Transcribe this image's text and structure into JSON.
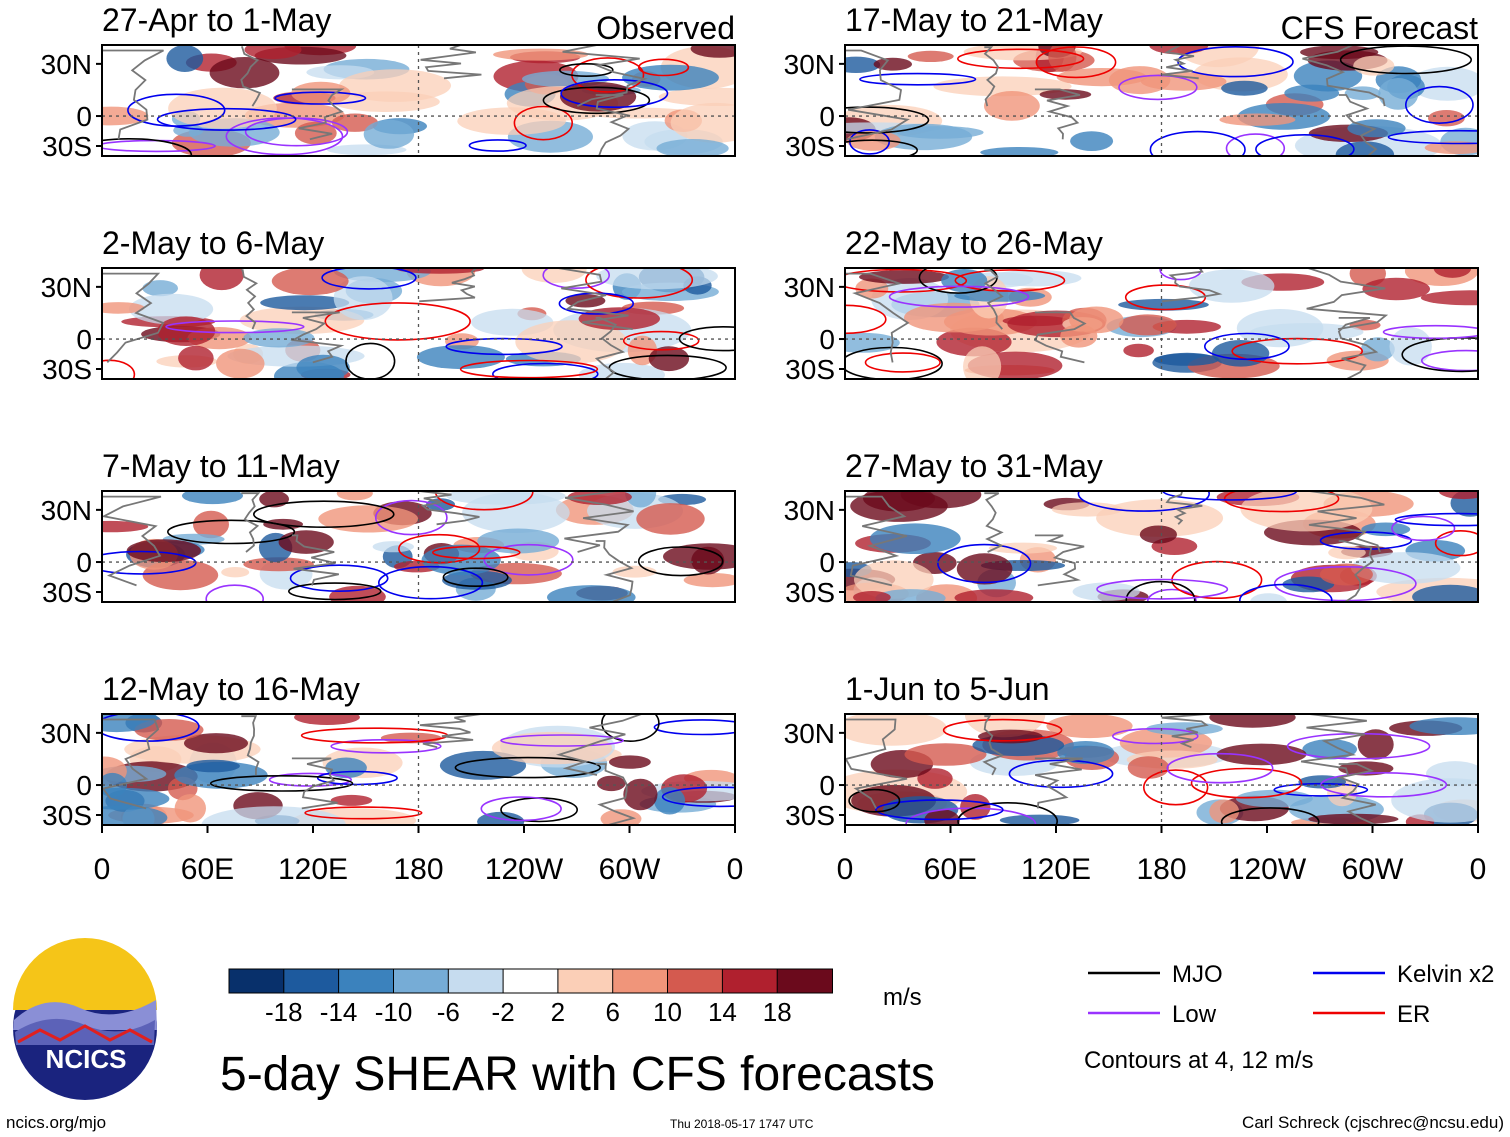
{
  "chart_data": {
    "type": "heatmap",
    "title": "5-day SHEAR with CFS forecasts",
    "units": "m/s",
    "x_ticks": [
      "0",
      "60E",
      "120E",
      "180",
      "120W",
      "60W",
      "0"
    ],
    "y_ticks": [
      "30N",
      "0",
      "30S"
    ],
    "columns": [
      {
        "label": "Observed",
        "panels": [
          "27-Apr to 1-May",
          "2-May to 6-May",
          "7-May to 11-May",
          "12-May to 16-May"
        ]
      },
      {
        "label": "CFS Forecast",
        "panels": [
          "17-May to 21-May",
          "22-May to 26-May",
          "27-May to 31-May",
          "1-Jun to 5-Jun"
        ]
      }
    ],
    "colorbar": {
      "labels": [
        "-18",
        "-14",
        "-10",
        "-6",
        "-2",
        "2",
        "6",
        "10",
        "14",
        "18"
      ],
      "colors": [
        "#08306b",
        "#1d5a9e",
        "#3b82bd",
        "#76acd6",
        "#c6dcef",
        "#ffffff",
        "#fbcfb7",
        "#f0957a",
        "#d45a4f",
        "#b0202e",
        "#6b0a1c"
      ]
    },
    "legend": [
      {
        "label": "MJO",
        "color": "#000000"
      },
      {
        "label": "Kelvin x2",
        "color": "#0000ee"
      },
      {
        "label": "Low",
        "color": "#9933ff"
      },
      {
        "label": "ER",
        "color": "#ee0000"
      }
    ],
    "contour_note": "Contours at 4, 12 m/s"
  },
  "footer": {
    "left": "ncics.org/mjo",
    "center": "Thu 2018-05-17 1747 UTC",
    "right": "Carl Schreck (cjschrec@ncsu.edu)",
    "logo": "NCICS"
  }
}
